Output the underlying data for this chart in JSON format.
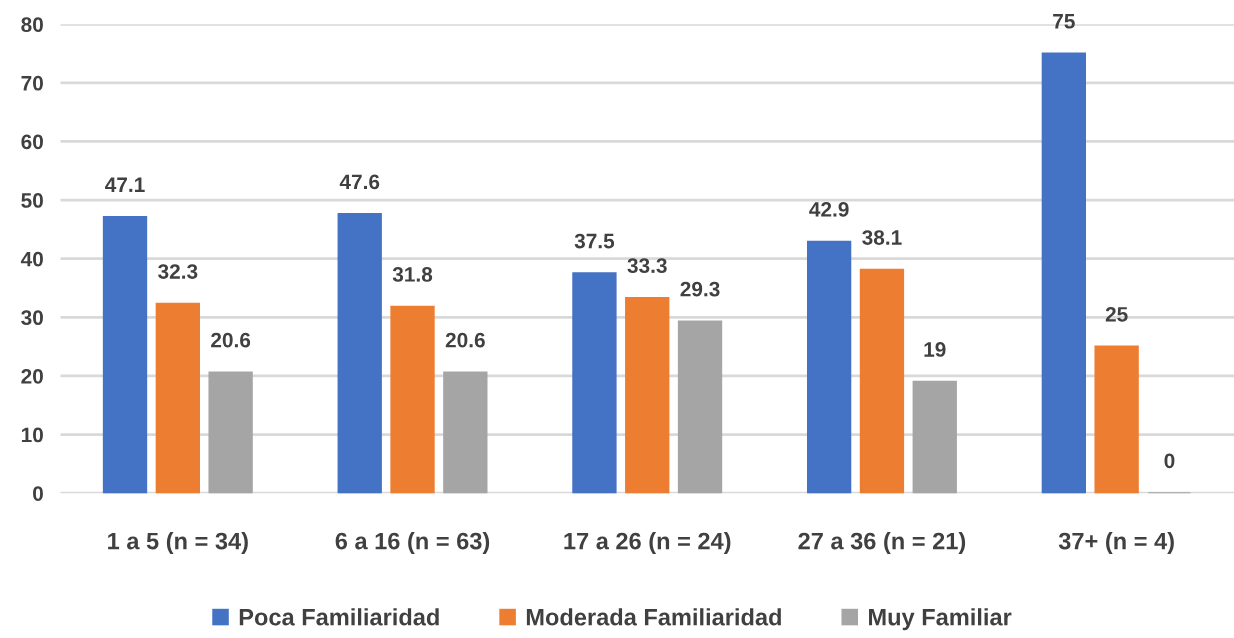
{
  "chart_data": {
    "type": "bar",
    "categories": [
      "1 a 5 (n = 34)",
      "6 a 16 (n = 63)",
      "17 a 26 (n = 24)",
      "27 a 36 (n = 21)",
      "37+ (n = 4)"
    ],
    "series": [
      {
        "name": "Poca Familiaridad",
        "color": "#4472c4",
        "values": [
          47.1,
          47.6,
          37.5,
          42.9,
          75
        ]
      },
      {
        "name": "Moderada Familiaridad",
        "color": "#ed7d31",
        "values": [
          32.3,
          31.8,
          33.3,
          38.1,
          25
        ]
      },
      {
        "name": "Muy Familiar",
        "color": "#a5a5a5",
        "values": [
          20.6,
          20.6,
          29.3,
          19,
          0
        ]
      }
    ],
    "ylim": [
      0,
      80
    ],
    "yticks": [
      0,
      10,
      20,
      30,
      40,
      50,
      60,
      70,
      80
    ],
    "grid": "y",
    "legend": "bottom",
    "data_labels": true
  }
}
